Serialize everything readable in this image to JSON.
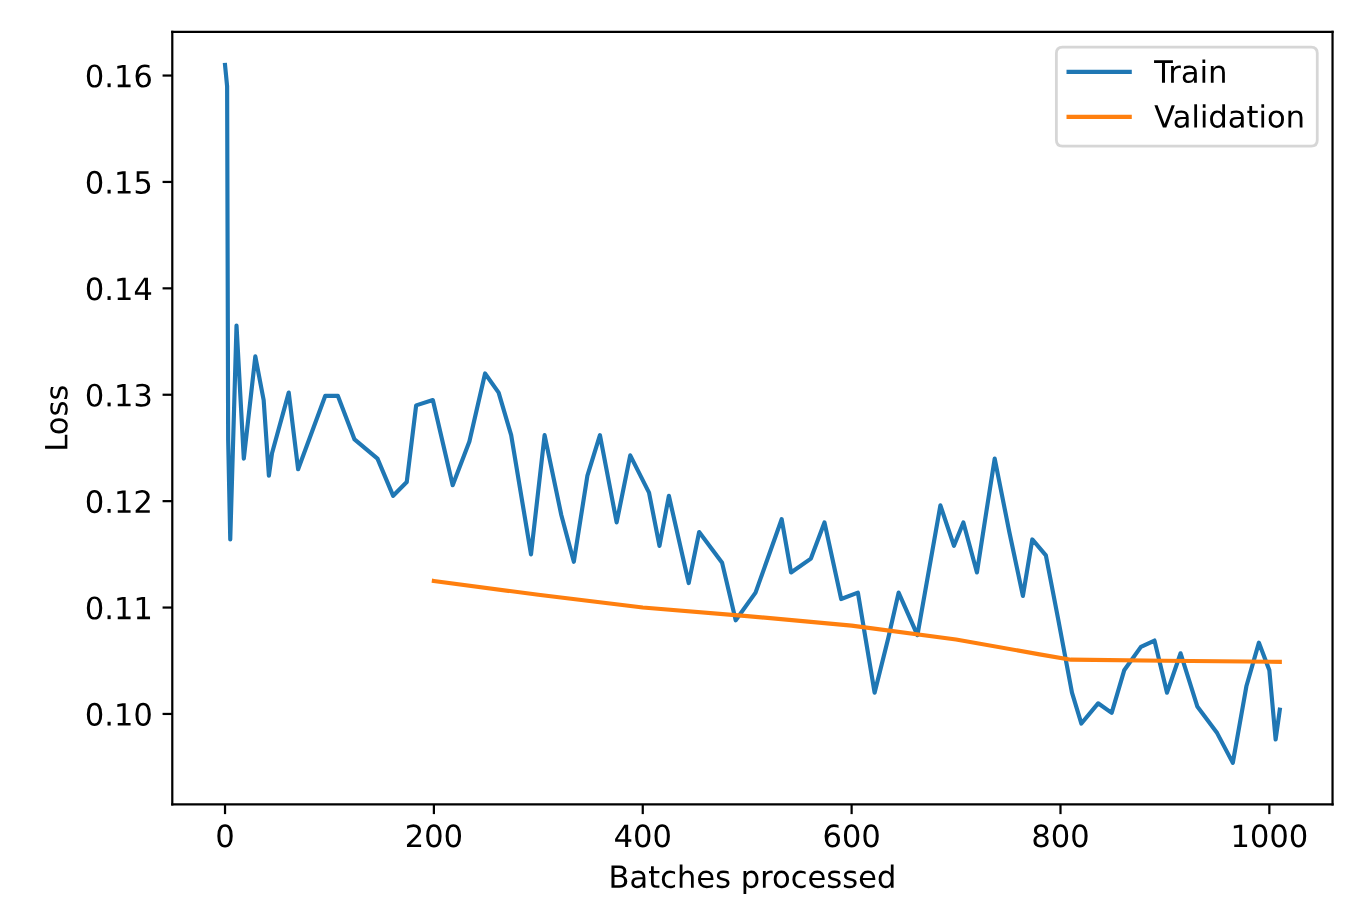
{
  "chart_data": {
    "type": "line",
    "xlabel": "Batches processed",
    "ylabel": "Loss",
    "xlim": [
      -50.5,
      1060.5
    ],
    "ylim": [
      0.0915,
      0.1641
    ],
    "xticks": [
      0,
      200,
      400,
      600,
      800,
      1000
    ],
    "yticks": [
      {
        "value": 0.1,
        "label": "0.10"
      },
      0.11,
      0.12,
      0.13,
      0.14,
      0.15,
      0.16
    ],
    "grid": false,
    "legend": "top right",
    "series": [
      {
        "name": "Train",
        "color": "#1f77b4",
        "x": [
          0,
          2,
          3,
          5,
          11,
          18,
          29,
          37,
          42,
          45,
          61,
          70,
          96,
          108,
          124,
          146,
          161,
          174,
          183,
          199,
          218,
          234,
          249,
          262,
          274,
          293,
          306,
          322,
          334,
          347,
          359,
          375,
          388,
          406,
          416,
          425,
          444,
          454,
          476,
          489,
          508,
          533,
          542,
          561,
          574,
          590,
          606,
          622,
          635,
          645,
          663,
          685,
          698,
          707,
          720,
          729,
          737,
          751,
          764,
          773,
          786,
          798,
          811,
          820,
          836,
          849,
          861,
          877,
          890,
          902,
          915,
          931,
          950,
          965,
          978,
          990,
          1000,
          1006,
          1010
        ],
        "values": [
          0.161,
          0.159,
          0.1258,
          0.1164,
          0.1365,
          0.124,
          0.1336,
          0.1295,
          0.1224,
          0.1245,
          0.1302,
          0.123,
          0.1299,
          0.1299,
          0.1258,
          0.124,
          0.1205,
          0.1218,
          0.129,
          0.1295,
          0.1215,
          0.1256,
          0.132,
          0.1302,
          0.1262,
          0.115,
          0.1262,
          0.1187,
          0.1143,
          0.1224,
          0.1262,
          0.118,
          0.1243,
          0.1208,
          0.1158,
          0.1205,
          0.1123,
          0.1171,
          0.1142,
          0.1088,
          0.1114,
          0.1183,
          0.1133,
          0.1146,
          0.118,
          0.1108,
          0.1114,
          0.102,
          0.1071,
          0.1114,
          0.1074,
          0.1196,
          0.1158,
          0.118,
          0.1133,
          0.119,
          0.124,
          0.1171,
          0.1111,
          0.1164,
          0.1149,
          0.1088,
          0.102,
          0.0991,
          0.101,
          0.1001,
          0.1041,
          0.1063,
          0.1069,
          0.102,
          0.1057,
          0.1007,
          0.0982,
          0.0954,
          0.1026,
          0.1067,
          0.1041,
          0.0976,
          0.1004
        ]
      },
      {
        "name": "Validation",
        "color": "#ff7f0e",
        "x": [
          200,
          300,
          400,
          500,
          600,
          700,
          780,
          810,
          900,
          1010
        ],
        "values": [
          0.1125,
          0.1112,
          0.11,
          0.1092,
          0.1083,
          0.107,
          0.1056,
          0.1051,
          0.105,
          0.1049
        ]
      }
    ]
  }
}
